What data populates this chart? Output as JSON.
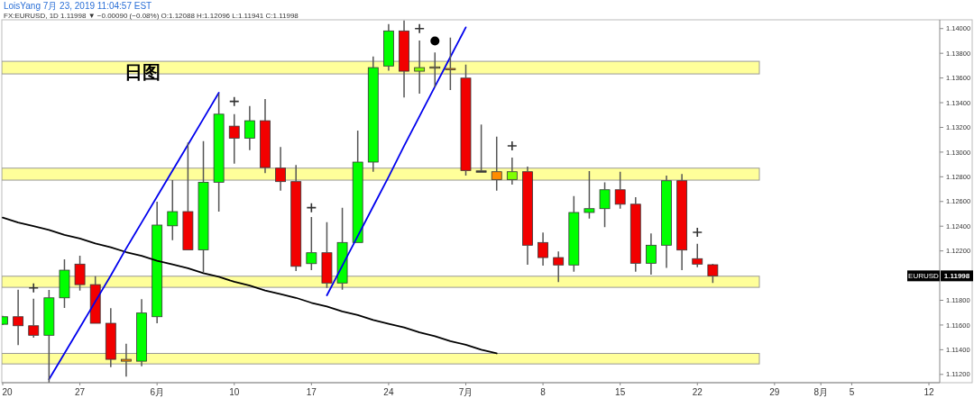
{
  "chart_data": {
    "type": "candlestick",
    "title": "日图",
    "subtitle": "FX:EURUSD, 1D 1.11998 ▼ −0.00090 (−0.08%) O:1.12088 H:1.12096 L:1.11941 C:1.11998",
    "annotations": [
      "LoisYang 7月 23, 2019 11:04:57 EST",
      {
        "text": "EURUSD",
        "y": 1.11998
      },
      {
        "text": "1.11998",
        "y": 1.11998
      }
    ],
    "categories": [
      "20",
      null,
      null,
      null,
      null,
      "27",
      null,
      null,
      null,
      null,
      "6月",
      null,
      null,
      null,
      null,
      "10",
      null,
      null,
      null,
      null,
      "17",
      null,
      null,
      null,
      null,
      "24",
      null,
      null,
      null,
      null,
      "7月",
      null,
      null,
      null,
      null,
      "8",
      null,
      null,
      null,
      null,
      "15",
      null,
      null,
      null,
      null,
      "22",
      null,
      null,
      null,
      null,
      "29",
      null,
      null,
      "8月",
      null,
      "5",
      null,
      null,
      null,
      null,
      "12"
    ],
    "ohlc": [
      [
        1.11606,
        1.11675,
        1.116,
        1.11667
      ],
      [
        1.11667,
        1.11886,
        1.11437,
        1.11594
      ],
      [
        1.11594,
        1.11813,
        1.11497,
        1.11517
      ],
      [
        1.11517,
        1.11883,
        1.11133,
        1.1182
      ],
      [
        1.1182,
        1.12131,
        1.11738,
        1.12044
      ],
      [
        1.12093,
        1.12161,
        1.11879,
        1.11927
      ],
      [
        1.11927,
        1.11995,
        1.11614,
        1.11614
      ],
      [
        1.11614,
        1.11736,
        1.11259,
        1.11322
      ],
      [
        1.11322,
        1.11448,
        1.11182,
        1.11307
      ],
      [
        1.11307,
        1.11809,
        1.11266,
        1.11697
      ],
      [
        1.11667,
        1.12598,
        1.11614,
        1.12409
      ],
      [
        1.12403,
        1.12773,
        1.12287,
        1.12518
      ],
      [
        1.12518,
        1.13077,
        1.12209,
        1.12209
      ],
      [
        1.12209,
        1.13089,
        1.12024,
        1.12756
      ],
      [
        1.12756,
        1.13473,
        1.12518,
        1.13307
      ],
      [
        1.1321,
        1.13307,
        1.12906,
        1.13113
      ],
      [
        1.13113,
        1.13373,
        1.13016,
        1.13254
      ],
      [
        1.13254,
        1.13429,
        1.12829,
        1.12875
      ],
      [
        1.1287,
        1.13041,
        1.12688,
        1.12761
      ],
      [
        1.12761,
        1.12895,
        1.12037,
        1.12075
      ],
      [
        1.12097,
        1.12474,
        1.12044,
        1.12185
      ],
      [
        1.12185,
        1.12432,
        1.119,
        1.1194
      ],
      [
        1.1194,
        1.12549,
        1.11886,
        1.12268
      ],
      [
        1.12268,
        1.13174,
        1.12268,
        1.12919
      ],
      [
        1.12919,
        1.13774,
        1.12841,
        1.13684
      ],
      [
        1.13697,
        1.14036,
        1.1366,
        1.13981
      ],
      [
        1.13981,
        1.14066,
        1.13442,
        1.13655
      ],
      [
        1.13655,
        1.13903,
        1.13473,
        1.13684
      ],
      [
        1.1369,
        1.13806,
        1.13526,
        1.13688
      ],
      [
        1.13677,
        1.13927,
        1.13502,
        1.1367
      ],
      [
        1.13599,
        1.13708,
        1.12809,
        1.12851
      ],
      [
        1.12848,
        1.13223,
        1.12846,
        1.12846
      ],
      [
        1.12841,
        1.13125,
        1.12688,
        1.12778
      ],
      [
        1.12778,
        1.12955,
        1.12736,
        1.12841
      ],
      [
        1.12841,
        1.12882,
        1.12088,
        1.12246
      ],
      [
        1.12268,
        1.12348,
        1.1208,
        1.12146
      ],
      [
        1.12146,
        1.12195,
        1.11947,
        1.12086
      ],
      [
        1.12086,
        1.12644,
        1.12032,
        1.12511
      ],
      [
        1.12511,
        1.12846,
        1.12462,
        1.12542
      ],
      [
        1.12542,
        1.12756,
        1.12392,
        1.12695
      ],
      [
        1.12695,
        1.12841,
        1.12542,
        1.12578
      ],
      [
        1.12578,
        1.12635,
        1.12032,
        1.121
      ],
      [
        1.121,
        1.12341,
        1.12008,
        1.12246
      ],
      [
        1.12246,
        1.12809,
        1.12063,
        1.12768
      ],
      [
        1.12768,
        1.12822,
        1.12044,
        1.12207
      ],
      [
        1.12137,
        1.12258,
        1.12068,
        1.12093
      ],
      [
        1.12088,
        1.12096,
        1.11941,
        1.11998
      ],
      null,
      null,
      null,
      null,
      null,
      null,
      null,
      null,
      null,
      null,
      null,
      null,
      null,
      null
    ],
    "colors": [
      "#00ff00",
      "#f20000",
      "#f20000",
      "#00ff00",
      "#00ff00",
      "#f20000",
      "#f20000",
      "#f20000",
      "#ff8c00",
      "#00ff00",
      "#00ff00",
      "#00ff00",
      "#f20000",
      "#00ff00",
      "#00ff00",
      "#f20000",
      "#00ff00",
      "#f20000",
      "#f20000",
      "#f20000",
      "#00ff00",
      "#f20000",
      "#00ff00",
      "#00ff00",
      "#00ff00",
      "#00ff00",
      "#f20000",
      "#80ff00",
      "#d2b450",
      "#ff8c00",
      "#f20000",
      "#404040",
      "#ff8c00",
      "#80ff00",
      "#f20000",
      "#f20000",
      "#f20000",
      "#00ff00",
      "#00ff00",
      "#00ff00",
      "#f20000",
      "#f20000",
      "#00ff00",
      "#00ff00",
      "#f20000",
      "#f20000",
      "#f20000",
      null,
      null,
      null,
      null,
      null,
      null,
      null,
      null,
      null,
      null,
      null,
      null,
      null,
      null
    ],
    "series": [
      {
        "type": "line",
        "color": "#000000",
        "values": [
          1.1247,
          1.1243,
          1.124,
          1.1237,
          1.1233,
          1.123,
          1.1226,
          1.1223,
          1.1219,
          1.1216,
          1.1212,
          1.1209,
          1.1206,
          1.1202,
          1.1199,
          1.1195,
          1.1192,
          1.1188,
          1.1185,
          1.1182,
          1.1178,
          1.1175,
          1.1171,
          1.1168,
          1.1164,
          1.1161,
          1.1158,
          1.1154,
          1.1151,
          1.1147,
          1.1144,
          1.114,
          1.1137,
          null,
          null,
          null,
          null,
          null,
          null,
          null,
          null,
          null,
          null,
          null,
          null,
          null,
          null,
          null,
          null,
          null,
          null,
          null,
          null,
          null,
          null,
          null,
          null,
          null,
          null,
          null,
          null
        ]
      },
      {
        "type": "line",
        "color": "#0000ee",
        "values": [
          null,
          null,
          null,
          1.1116,
          1.1137,
          1.1158,
          1.1179,
          1.12,
          1.1222,
          1.1243,
          1.1264,
          1.1285,
          1.1306,
          1.1327,
          1.1348,
          null,
          null,
          null,
          null,
          null,
          null,
          null,
          null,
          null,
          null,
          null,
          null,
          null,
          null,
          null,
          null,
          null,
          null,
          null,
          null,
          null,
          null,
          null,
          null,
          null,
          null,
          null,
          null,
          null,
          null,
          null,
          null,
          null,
          null,
          null,
          null,
          null,
          null,
          null,
          null,
          null,
          null,
          null,
          null,
          null,
          null
        ]
      },
      {
        "type": "line",
        "color": "#0000ee",
        "values": [
          null,
          null,
          null,
          null,
          null,
          null,
          null,
          null,
          null,
          null,
          null,
          null,
          null,
          null,
          null,
          null,
          null,
          null,
          null,
          null,
          null,
          1.1184,
          1.1208,
          1.1232,
          1.1256,
          1.128,
          1.1305,
          1.1329,
          1.1353,
          1.1377,
          1.1401,
          null,
          null,
          null,
          null,
          null,
          null,
          null,
          null,
          null,
          null,
          null,
          null,
          null,
          null,
          null,
          null,
          null,
          null,
          null,
          null,
          null,
          null,
          null,
          null,
          null,
          null,
          null,
          null,
          null,
          null
        ]
      },
      {
        "type": "scatter",
        "color": "#333333",
        "marker": "cross",
        "values": [
          null,
          null,
          1.119,
          null,
          null,
          null,
          null,
          null,
          null,
          null,
          null,
          null,
          null,
          null,
          null,
          1.1341,
          null,
          null,
          null,
          null,
          1.1255,
          null,
          null,
          null,
          null,
          null,
          null,
          1.14,
          null,
          null,
          null,
          null,
          null,
          1.1305,
          null,
          null,
          null,
          null,
          null,
          null,
          null,
          null,
          null,
          null,
          null,
          1.1235,
          null,
          null,
          null,
          null,
          null,
          null,
          null,
          null,
          null,
          null,
          null,
          null,
          null,
          null,
          null
        ]
      },
      {
        "type": "scatter",
        "color": "#000000",
        "marker": "circle",
        "values": [
          null,
          null,
          null,
          null,
          null,
          null,
          null,
          null,
          null,
          null,
          null,
          null,
          null,
          null,
          null,
          null,
          null,
          null,
          null,
          null,
          null,
          null,
          null,
          null,
          null,
          null,
          null,
          null,
          1.139,
          null,
          null,
          null,
          null,
          null,
          null,
          null,
          null,
          null,
          null,
          null,
          null,
          null,
          null,
          null,
          null,
          null,
          null,
          null,
          null,
          null,
          null,
          null,
          null,
          null,
          null,
          null,
          null,
          null,
          null,
          null,
          null
        ]
      }
    ],
    "ylim": [
      1.11133,
      1.14071
    ],
    "yticks": [
      {
        "value": 1.112,
        "label": "1.11200"
      },
      {
        "value": 1.114,
        "label": "1.11400"
      },
      {
        "value": 1.116,
        "label": "1.11600"
      },
      {
        "value": 1.118,
        "label": "1.11800"
      },
      {
        "value": 1.122,
        "label": "1.12200"
      },
      {
        "value": 1.124,
        "label": "1.12400"
      },
      {
        "value": 1.126,
        "label": "1.12600"
      },
      {
        "value": 1.128,
        "label": "1.12800"
      },
      {
        "value": 1.13,
        "label": "1.13000"
      },
      {
        "value": 1.132,
        "label": "1.13200"
      },
      {
        "value": 1.134,
        "label": "1.13400"
      },
      {
        "value": 1.136,
        "label": "1.13600"
      },
      {
        "value": 1.138,
        "label": "1.13800"
      },
      {
        "value": 1.14,
        "label": "1.14000"
      }
    ],
    "bands": [
      {
        "axis": "y",
        "from": 1.13633,
        "to": 1.13735,
        "color": "#ffff88"
      },
      {
        "axis": "y",
        "from": 1.12773,
        "to": 1.1287,
        "color": "#ffff88"
      },
      {
        "axis": "y",
        "from": 1.11905,
        "to": 1.11995,
        "color": "#ffff88"
      },
      {
        "axis": "y",
        "from": 1.11285,
        "to": 1.1137,
        "color": "#ffff88"
      }
    ]
  }
}
